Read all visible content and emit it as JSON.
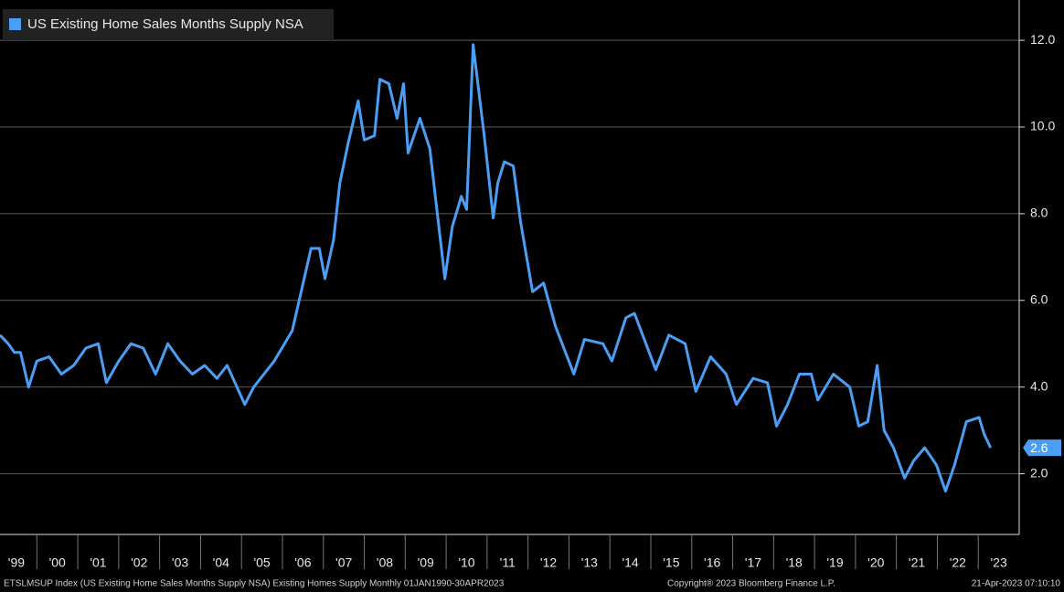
{
  "chart_data": {
    "type": "line",
    "series": [
      {
        "name": "US Existing Home Sales Months Supply NSA",
        "color": "#4a9ff5",
        "values": [
          5.2,
          5.0,
          4.8,
          4.8,
          4.0,
          4.6,
          4.7,
          4.3,
          4.5,
          4.9,
          5.0,
          4.1,
          4.6,
          5.0,
          4.9,
          4.3,
          5.0,
          4.6,
          4.3,
          4.5,
          4.2,
          4.5,
          3.6,
          4.0,
          4.6,
          5.3,
          7.2,
          7.2,
          6.5,
          7.4,
          8.7,
          9.6,
          10.6,
          9.7,
          9.8,
          11.1,
          11.0,
          10.2,
          11.0,
          9.4,
          10.2,
          9.5,
          6.5,
          7.7,
          8.4,
          8.1,
          11.9,
          9.8,
          7.9,
          8.7,
          9.2,
          9.1,
          7.8,
          6.2,
          6.4,
          5.4,
          4.3,
          5.1,
          5.0,
          4.6,
          5.6,
          5.7,
          4.4,
          5.2,
          5.0,
          3.9,
          4.7,
          4.3,
          3.6,
          4.2,
          4.1,
          3.1,
          3.6,
          4.3,
          4.3,
          3.7,
          4.3,
          4.0,
          3.1,
          3.2,
          4.5,
          3.0,
          2.6,
          1.9,
          2.3,
          2.6,
          2.2,
          1.6,
          2.2,
          3.2,
          3.3,
          2.9,
          2.6
        ]
      }
    ],
    "x": [
      1999.1,
      1999.3,
      1999.45,
      1999.6,
      1999.8,
      2000.0,
      2000.3,
      2000.6,
      2000.9,
      2001.2,
      2001.5,
      2001.7,
      2002.0,
      2002.3,
      2002.6,
      2002.9,
      2003.2,
      2003.5,
      2003.8,
      2004.1,
      2004.4,
      2004.65,
      2005.08,
      2005.3,
      2005.8,
      2006.24,
      2006.7,
      2006.9,
      2007.04,
      2007.25,
      2007.4,
      2007.6,
      2007.85,
      2008.0,
      2008.25,
      2008.38,
      2008.6,
      2008.8,
      2008.96,
      2009.07,
      2009.36,
      2009.6,
      2009.97,
      2010.15,
      2010.37,
      2010.5,
      2010.66,
      2010.93,
      2011.15,
      2011.26,
      2011.42,
      2011.64,
      2011.82,
      2012.11,
      2012.38,
      2012.67,
      2013.12,
      2013.38,
      2013.83,
      2014.05,
      2014.39,
      2014.6,
      2015.12,
      2015.44,
      2015.84,
      2016.1,
      2016.46,
      2016.84,
      2017.09,
      2017.5,
      2017.85,
      2018.07,
      2018.34,
      2018.63,
      2018.92,
      2019.08,
      2019.46,
      2019.86,
      2020.08,
      2020.3,
      2020.53,
      2020.7,
      2020.93,
      2021.2,
      2021.42,
      2021.69,
      2021.98,
      2022.2,
      2022.42,
      2022.71,
      2023.02,
      2023.15,
      2023.3
    ],
    "xlim": [
      1999.1,
      2024.0
    ],
    "xticks": [
      {
        "value": 1999.5,
        "label": "'99"
      },
      {
        "value": 2000.5,
        "label": "'00"
      },
      {
        "value": 2001.5,
        "label": "'01"
      },
      {
        "value": 2002.5,
        "label": "'02"
      },
      {
        "value": 2003.5,
        "label": "'03"
      },
      {
        "value": 2004.5,
        "label": "'04"
      },
      {
        "value": 2005.5,
        "label": "'05"
      },
      {
        "value": 2006.5,
        "label": "'06"
      },
      {
        "value": 2007.5,
        "label": "'07"
      },
      {
        "value": 2008.5,
        "label": "'08"
      },
      {
        "value": 2009.5,
        "label": "'09"
      },
      {
        "value": 2010.5,
        "label": "'10"
      },
      {
        "value": 2011.5,
        "label": "'11"
      },
      {
        "value": 2012.5,
        "label": "'12"
      },
      {
        "value": 2013.5,
        "label": "'13"
      },
      {
        "value": 2014.5,
        "label": "'14"
      },
      {
        "value": 2015.5,
        "label": "'15"
      },
      {
        "value": 2016.5,
        "label": "'16"
      },
      {
        "value": 2017.5,
        "label": "'17"
      },
      {
        "value": 2018.5,
        "label": "'18"
      },
      {
        "value": 2019.5,
        "label": "'19"
      },
      {
        "value": 2020.5,
        "label": "'20"
      },
      {
        "value": 2021.5,
        "label": "'21"
      },
      {
        "value": 2022.5,
        "label": "'22"
      },
      {
        "value": 2023.5,
        "label": "'23"
      }
    ],
    "ylim": [
      0.6,
      12.93
    ],
    "yticks": [
      {
        "value": 2,
        "label": "2.0"
      },
      {
        "value": 4,
        "label": "4.0"
      },
      {
        "value": 6,
        "label": "6.0"
      },
      {
        "value": 8,
        "label": "8.0"
      },
      {
        "value": 10,
        "label": "10.0"
      },
      {
        "value": 12,
        "label": "12.0"
      }
    ],
    "grid": true,
    "legend": "upper left",
    "footer": {
      "source": "ETSLMSUP Index (US Existing Home Sales Months Supply NSA) Existing Homes Supply  Monthly 01JAN1990-30APR2023",
      "copyright": "Copyright® 2023 Bloomberg Finance L.P.",
      "timestamp": "21-Apr-2023 07:10:10"
    }
  }
}
